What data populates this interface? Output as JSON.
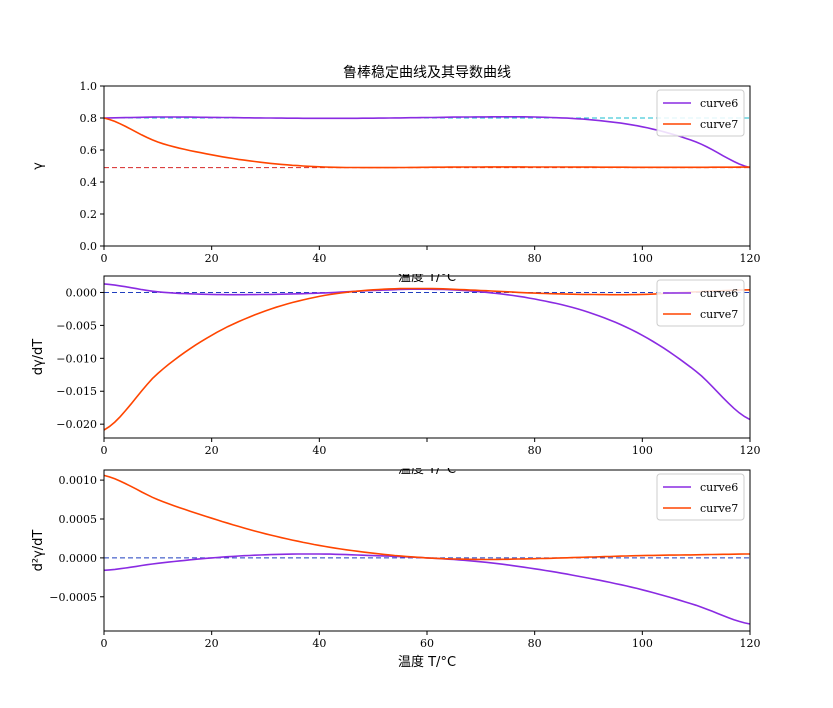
{
  "title": "鲁棒稳定曲线及其导数曲线",
  "colors": {
    "curve6": "#8a2be2",
    "curve7": "#ff4500",
    "ref_top_high": "#17becf",
    "ref_top_low": "#d62728",
    "ref_zero": "#1f3fbf"
  },
  "chart_data": [
    {
      "type": "line",
      "title": "鲁棒稳定曲线及其导数曲线",
      "xlabel": "温度 T/°C",
      "ylabel": "γ",
      "xlim": [
        0,
        120
      ],
      "ylim": [
        0,
        1.0
      ],
      "xticks": [
        "0",
        "20",
        "40",
        "60",
        "80",
        "100",
        "120"
      ],
      "yticks": [
        "0.0",
        "0.2",
        "0.4",
        "0.6",
        "0.8",
        "1.0"
      ],
      "ytick_values": [
        0,
        0.2,
        0.4,
        0.6,
        0.8,
        1.0
      ],
      "legend_position": "top-right",
      "reference_lines": [
        0.8,
        0.49
      ],
      "x": [
        0,
        10,
        20,
        30,
        40,
        50,
        60,
        70,
        80,
        90,
        100,
        110,
        120
      ],
      "series": [
        {
          "name": "curve6",
          "values": [
            0.8,
            0.806,
            0.804,
            0.8,
            0.798,
            0.799,
            0.803,
            0.807,
            0.806,
            0.79,
            0.745,
            0.65,
            0.49
          ]
        },
        {
          "name": "curve7",
          "values": [
            0.8,
            0.65,
            0.57,
            0.52,
            0.495,
            0.49,
            0.492,
            0.494,
            0.494,
            0.493,
            0.492,
            0.492,
            0.493
          ]
        }
      ]
    },
    {
      "type": "line",
      "xlabel": "温度 T/°C",
      "ylabel": "dγ/dT",
      "xlim": [
        0,
        120
      ],
      "ylim": [
        -0.0221,
        0.0025
      ],
      "xticks": [
        "0",
        "20",
        "40",
        "60",
        "80",
        "100",
        "120"
      ],
      "yticks": [
        "0.000",
        "−0.005",
        "−0.010",
        "−0.015",
        "−0.020"
      ],
      "ytick_values": [
        0,
        -0.005,
        -0.01,
        -0.015,
        -0.02
      ],
      "legend_position": "top-right",
      "reference_lines": [
        0
      ],
      "x": [
        0,
        10,
        20,
        30,
        40,
        50,
        60,
        70,
        80,
        90,
        100,
        110,
        120
      ],
      "series": [
        {
          "name": "curve6",
          "values": [
            0.0013,
            0.0001,
            -0.0003,
            -0.0003,
            -0.0001,
            0.0003,
            0.0005,
            0.0001,
            -0.001,
            -0.003,
            -0.0065,
            -0.012,
            -0.0193
          ]
        },
        {
          "name": "curve7",
          "values": [
            -0.0209,
            -0.0123,
            -0.0065,
            -0.0028,
            -0.0006,
            0.0004,
            0.0006,
            0.0003,
            -0.0001,
            -0.0003,
            -0.0003,
            0.0001,
            0.0004
          ]
        }
      ]
    },
    {
      "type": "line",
      "xlabel": "温度 T/°C",
      "ylabel": "d²γ/dT",
      "xlim": [
        0,
        120
      ],
      "ylim": [
        -0.00094,
        0.00113
      ],
      "xticks": [
        "0",
        "20",
        "40",
        "60",
        "80",
        "100",
        "120"
      ],
      "yticks": [
        "0.0010",
        "0.0005",
        "0.0000",
        "−0.0005"
      ],
      "ytick_values": [
        0.001,
        0.0005,
        0,
        -0.0005
      ],
      "legend_position": "top-right",
      "reference_lines": [
        0
      ],
      "x": [
        0,
        10,
        20,
        30,
        40,
        50,
        60,
        70,
        80,
        90,
        100,
        110,
        120
      ],
      "series": [
        {
          "name": "curve6",
          "values": [
            -0.00016,
            -7e-05,
            0.0,
            4e-05,
            5e-05,
            3e-05,
            0.0,
            -5e-05,
            -0.00014,
            -0.00026,
            -0.00041,
            -0.00061,
            -0.00085
          ]
        },
        {
          "name": "curve7",
          "values": [
            0.00106,
            0.00075,
            0.00051,
            0.00031,
            0.00016,
            6e-05,
            0.0,
            -2e-05,
            -1e-05,
            1e-05,
            3e-05,
            4e-05,
            5e-05
          ]
        }
      ]
    }
  ],
  "legend_labels": [
    "curve6",
    "curve7"
  ]
}
